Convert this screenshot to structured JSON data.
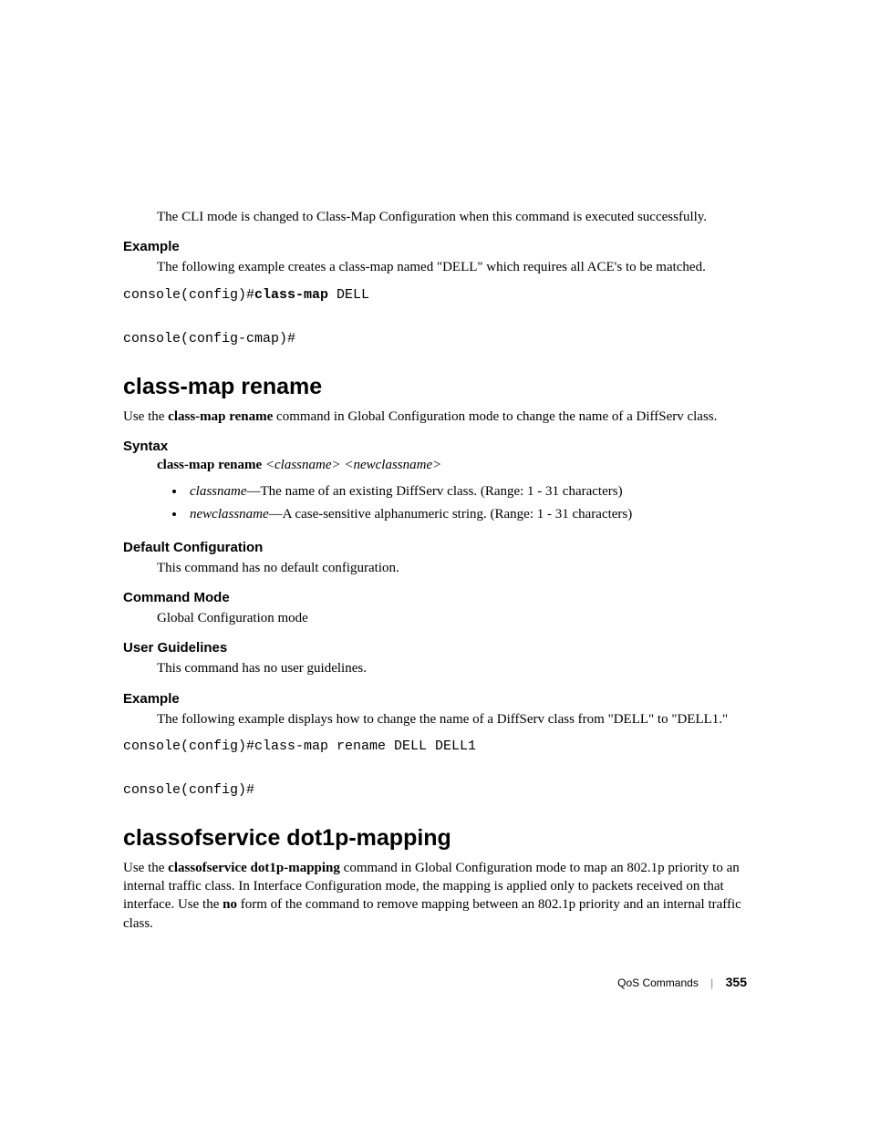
{
  "top_paragraph": "The CLI mode is changed to Class-Map Configuration when this command is executed successfully.",
  "example1": {
    "heading": "Example",
    "text": "The following example creates a class-map named \"DELL\" which requires all ACE's to be matched.",
    "code_prefix1": "console(config)#",
    "code_bold1": "class-map",
    "code_suffix1": " DELL",
    "code_line2": "console(config-cmap)#"
  },
  "section_rename": {
    "title": "class-map rename",
    "intro_pre": "Use the ",
    "intro_cmd": "class-map rename",
    "intro_post": " command in Global Configuration mode to change the name of a DiffServ class.",
    "syntax_heading": "Syntax",
    "syntax_cmd": "class-map rename",
    "syntax_arg1": "<classname>",
    "syntax_arg2": "<newclassname>",
    "bullet1_term": "classname",
    "bullet1_rest": "—The name of an existing DiffServ class. (Range: 1 - 31 characters)",
    "bullet2_term": "newclassname",
    "bullet2_rest": "—A case-sensitive alphanumeric string. (Range: 1 - 31 characters)",
    "default_heading": "Default Configuration",
    "default_text": "This command has no default configuration.",
    "mode_heading": "Command Mode",
    "mode_text": "Global Configuration mode",
    "guidelines_heading": "User Guidelines",
    "guidelines_text": "This command has no user guidelines.",
    "example_heading": "Example",
    "example_text": "The following example displays how to change the name of a DiffServ class from \"DELL\" to \"DELL1.\"",
    "code_line1": "console(config)#class-map rename DELL DELL1",
    "code_line2": "console(config)#"
  },
  "section_cos": {
    "title": "classofservice dot1p-mapping",
    "intro_pre": "Use the ",
    "intro_cmd": "classofservice dot1p-mapping",
    "intro_mid": " command in Global Configuration mode to map an  802.1p priority to an internal traffic class. In Interface Configuration mode, the mapping is applied only to packets received on that interface. Use the ",
    "intro_no": "no",
    "intro_post": " form of the command to remove mapping between an 802.1p priority and an internal traffic class."
  },
  "footer": {
    "section": "QoS Commands",
    "page": "355"
  }
}
